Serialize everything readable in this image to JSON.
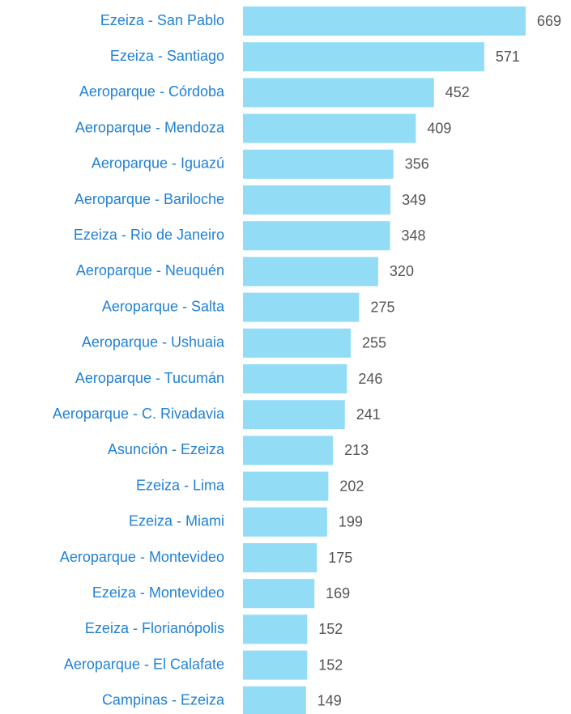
{
  "chart_data": {
    "type": "bar",
    "orientation": "horizontal",
    "color": "#92dcf6",
    "categories": [
      "Ezeiza - San Pablo",
      "Ezeiza - Santiago",
      "Aeroparque - Córdoba",
      "Aeroparque - Mendoza",
      "Aeroparque - Iguazú",
      "Aeroparque - Bariloche",
      "Ezeiza - Rio de Janeiro",
      "Aeroparque - Neuquén",
      "Aeroparque - Salta",
      "Aeroparque - Ushuaia",
      "Aeroparque - Tucumán",
      "Aeroparque - C. Rivadavia",
      "Asunción - Ezeiza",
      "Ezeiza - Lima",
      "Ezeiza - Miami",
      "Aeroparque - Montevideo",
      "Ezeiza - Montevideo",
      "Ezeiza - Florianópolis",
      "Aeroparque - El Calafate",
      "Campinas - Ezeiza"
    ],
    "values": [
      669,
      571,
      452,
      409,
      356,
      349,
      348,
      320,
      275,
      255,
      246,
      241,
      213,
      202,
      199,
      175,
      169,
      152,
      152,
      149
    ]
  }
}
